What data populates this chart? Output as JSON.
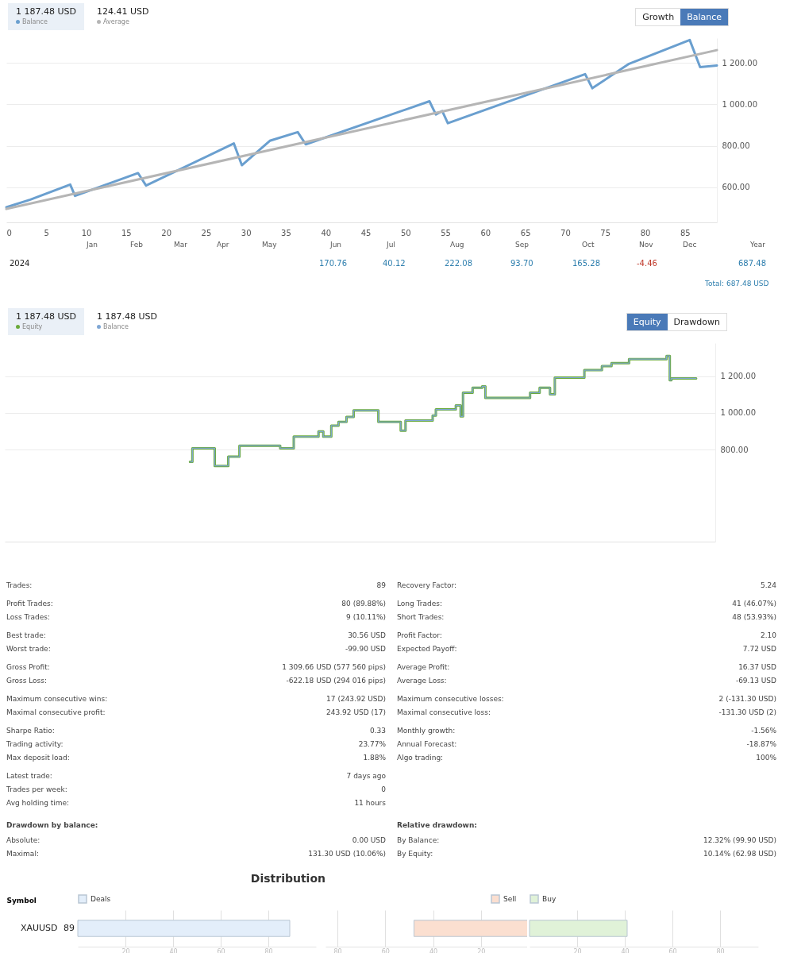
{
  "chart_data": [
    {
      "type": "line",
      "legend": "top left",
      "grid": "y",
      "annotations": [
        "1 187.48 USD",
        "124.41 USD",
        "Growth",
        "Balance"
      ],
      "xlim": [
        0,
        89
      ],
      "xticks": [
        0,
        5,
        10,
        15,
        20,
        25,
        30,
        35,
        40,
        45,
        50,
        55,
        60,
        65,
        70,
        75,
        80,
        85
      ],
      "ylim": [
        430,
        1320
      ],
      "yticks": [
        {
          "value": 600,
          "label": "600.00"
        },
        {
          "value": 800,
          "label": "800.00"
        },
        {
          "value": 1000,
          "label": "1 000.00"
        },
        {
          "value": 1200,
          "label": "1 200.00"
        }
      ],
      "series": [
        {
          "name": "Balance",
          "color": "#6a9fcf",
          "x": [
            0,
            3,
            8,
            8.6,
            16.5,
            17.5,
            28.5,
            29.5,
            33,
            36.5,
            37.5,
            53,
            53.8,
            54.6,
            55.3,
            72.5,
            73.4,
            78,
            85.6,
            86.9,
            89
          ],
          "values": [
            503,
            540,
            613,
            558,
            668,
            608,
            811,
            706,
            824,
            866,
            807,
            1015,
            951,
            968,
            909,
            1146,
            1078,
            1196,
            1311,
            1180,
            1188
          ]
        },
        {
          "name": "Average",
          "color": "#b5b5b5",
          "x": [
            0,
            89
          ],
          "values": [
            495,
            1262
          ]
        }
      ]
    },
    {
      "type": "other",
      "annotations": [
        "Jan",
        "Feb",
        "Mar",
        "Apr",
        "May",
        "Jun",
        "Jul",
        "Aug",
        "Sep",
        "Oct",
        "Nov",
        "Dec",
        "Year",
        "2024",
        "170.76",
        "40.12",
        "222.08",
        "93.70",
        "165.28",
        "-4.46",
        "687.48",
        "Total: 687.48 USD"
      ]
    },
    {
      "type": "step",
      "legend": "top left",
      "grid": "y",
      "annotations": [
        "1 187.48 USD",
        "1 187.48 USD",
        "Equity",
        "Drawdown"
      ],
      "xlim": [
        0,
        89
      ],
      "ylim": [
        300,
        1380
      ],
      "yticks": [
        {
          "value": 800,
          "label": "800.00"
        },
        {
          "value": 1000,
          "label": "1 000.00"
        },
        {
          "value": 1200,
          "label": "1 200.00"
        }
      ],
      "x": [
        23.2,
        23.5,
        26.3,
        28,
        29.4,
        34.5,
        36.2,
        39.3,
        39.9,
        40.9,
        41.8,
        42.8,
        43.7,
        46.8,
        49.6,
        50.2,
        53.6,
        54,
        56.5,
        57.1,
        57.4,
        58.6,
        59.8,
        60.2,
        65.8,
        67,
        68.3,
        68.9,
        72.6,
        74.8,
        76,
        78.2,
        82.9,
        83.3,
        83.5,
        86.6
      ],
      "series": [
        {
          "name": "Equity",
          "color": "#6aaa3a",
          "values": [
            734,
            808,
            712,
            762,
            822,
            808,
            871,
            899,
            871,
            931,
            951,
            978,
            1014,
            951,
            904,
            959,
            986,
            1019,
            1041,
            981,
            1110,
            1137,
            1145,
            1082,
            1110,
            1137,
            1101,
            1192,
            1233,
            1255,
            1271,
            1293,
            1310,
            1178,
            1188,
            1188
          ]
        },
        {
          "name": "Balance",
          "color": "#7fa7d4",
          "values": [
            734,
            808,
            712,
            762,
            822,
            808,
            871,
            899,
            871,
            931,
            951,
            978,
            1014,
            951,
            904,
            959,
            986,
            1019,
            1041,
            981,
            1110,
            1137,
            1145,
            1082,
            1110,
            1137,
            1101,
            1192,
            1233,
            1255,
            1271,
            1293,
            1310,
            1178,
            1188,
            1188
          ]
        }
      ]
    },
    {
      "type": "other",
      "annotations": [
        "Trades:",
        "89",
        "Profit Trades:",
        "80 (89.88%)",
        "Loss Trades:",
        "9 (10.11%)",
        "Best trade:",
        "30.56 USD",
        "Worst trade:",
        "-99.90 USD",
        "Gross Profit:",
        "1 309.66 USD (577 560 pips)",
        "Gross Loss:",
        "-622.18 USD (294 016 pips)",
        "Maximum consecutive wins:",
        "17 (243.92 USD)",
        "Maximal consecutive profit:",
        "243.92 USD (17)",
        "Sharpe Ratio:",
        "0.33",
        "Trading activity:",
        "23.77%",
        "Max deposit load:",
        "1.88%",
        "Latest trade:",
        "7 days ago",
        "Trades per week:",
        "0",
        "Avg holding time:",
        "11 hours"
      ]
    },
    {
      "type": "other",
      "annotations": [
        "Recovery Factor:",
        "5.24",
        "Long Trades:",
        "41 (46.07%)",
        "Short Trades:",
        "48 (53.93%)",
        "Profit Factor:",
        "2.10",
        "Expected Payoff:",
        "7.72 USD",
        "Average Profit:",
        "16.37 USD",
        "Average Loss:",
        "-69.13 USD",
        "Maximum consecutive losses:",
        "2 (-131.30 USD)",
        "Maximal consecutive loss:",
        "-131.30 USD (2)",
        "Monthly growth:",
        "-1.56%",
        "Annual Forecast:",
        "-18.87%",
        "Algo trading:",
        "100%"
      ]
    },
    {
      "type": "other",
      "title": "Drawdown by balance:",
      "annotations": [
        "Absolute:",
        "0.00 USD",
        "Maximal:",
        "131.30 USD (10.06%)"
      ]
    },
    {
      "type": "other",
      "title": "Relative drawdown:",
      "annotations": [
        "By Balance:",
        "12.32% (99.90 USD)",
        "By Equity:",
        "10.14% (62.98 USD)"
      ]
    },
    {
      "type": "bar",
      "orientation": "horizontal",
      "title": "Distribution",
      "ylabel": "Symbol",
      "legend": "top left",
      "grid": "x",
      "categories": [
        "XAUUSD"
      ],
      "xlim": [
        0,
        100
      ],
      "xticks": [
        20,
        40,
        60,
        80
      ],
      "series": [
        {
          "name": "Deals",
          "color": "#e3eefa",
          "values": [
            89
          ],
          "value_labels": [
            "89"
          ]
        }
      ]
    },
    {
      "type": "bar",
      "orientation": "horizontal",
      "legend": "top right",
      "grid": "x",
      "categories": [
        null
      ],
      "xlim": [
        85,
        0
      ],
      "xticks": [
        80,
        60,
        40,
        20
      ],
      "series": [
        {
          "name": "Sell",
          "color": "#fbdfd0",
          "values": [
            48
          ]
        }
      ]
    },
    {
      "type": "bar",
      "orientation": "horizontal",
      "legend": "top left",
      "grid": "x",
      "categories": [
        null
      ],
      "xlim": [
        0,
        96
      ],
      "xticks": [
        20,
        40,
        60,
        80
      ],
      "series": [
        {
          "name": "Buy",
          "color": "#e0f2d8",
          "values": [
            41
          ]
        }
      ]
    }
  ]
}
